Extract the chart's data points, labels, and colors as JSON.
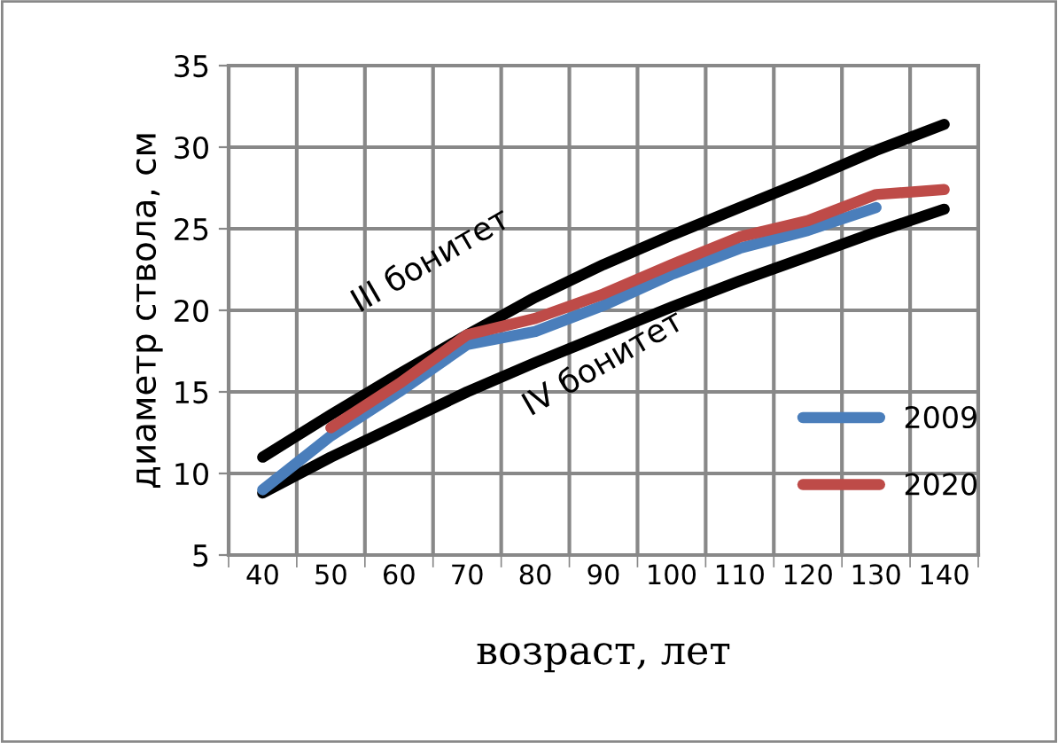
{
  "chart_data": {
    "type": "line",
    "xlabel": "возраст, лет",
    "ylabel": "диаметр ствола, см",
    "categories": [
      "40",
      "50",
      "60",
      "70",
      "80",
      "90",
      "100",
      "110",
      "120",
      "130",
      "140"
    ],
    "series": [
      {
        "color": "#000000",
        "values": [
          11.0,
          13.6,
          16.1,
          18.5,
          20.8,
          22.8,
          24.6,
          26.3,
          28.0,
          29.8,
          31.4
        ]
      },
      {
        "color": "#000000",
        "values": [
          8.8,
          11.0,
          13.0,
          15.0,
          16.8,
          18.5,
          20.2,
          21.8,
          23.3,
          24.8,
          26.2
        ]
      },
      {
        "name": "2009",
        "color": "#4a7ebb",
        "values": [
          9.0,
          12.3,
          15.0,
          17.9,
          18.7,
          20.3,
          22.2,
          23.8,
          24.9,
          26.3,
          null
        ]
      },
      {
        "name": "2020",
        "color": "#be4b48",
        "values": [
          null,
          12.8,
          15.5,
          18.5,
          19.5,
          21.0,
          22.8,
          24.5,
          25.5,
          27.1,
          27.4
        ]
      }
    ],
    "annotations": [
      "III бонитет",
      "IV бонитет"
    ],
    "ylim": [
      5,
      35
    ],
    "yticks": [
      5,
      10,
      15,
      20,
      25,
      30,
      35
    ],
    "grid": true,
    "legend": "right",
    "marker": "none",
    "line_style": "solid"
  }
}
